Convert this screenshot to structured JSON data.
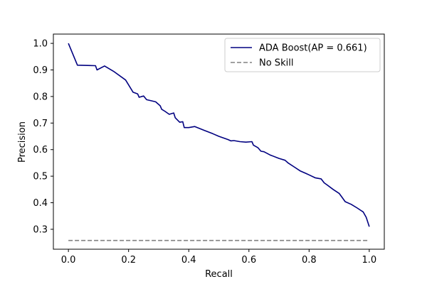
{
  "chart_data": {
    "type": "line",
    "title": "",
    "xlabel": "Recall",
    "ylabel": "Precision",
    "xlim": [
      -0.05,
      1.05
    ],
    "ylim": [
      0.225,
      1.035
    ],
    "xticks": [
      0.0,
      0.2,
      0.4,
      0.6,
      0.8,
      1.0
    ],
    "xtick_labels": [
      "0.0",
      "0.2",
      "0.4",
      "0.6",
      "0.8",
      "1.0"
    ],
    "yticks": [
      0.3,
      0.4,
      0.5,
      0.6,
      0.7,
      0.8,
      0.9,
      1.0
    ],
    "ytick_labels": [
      "0.3",
      "0.4",
      "0.5",
      "0.6",
      "0.7",
      "0.8",
      "0.9",
      "1.0"
    ],
    "grid": false,
    "legend_position": "top-right",
    "series": [
      {
        "name": "ADA Boost(AP = 0.661)",
        "color": "#000080",
        "style": "solid",
        "x": [
          0.0,
          0.03,
          0.09,
          0.095,
          0.12,
          0.15,
          0.19,
          0.215,
          0.23,
          0.235,
          0.25,
          0.26,
          0.29,
          0.305,
          0.31,
          0.32,
          0.335,
          0.35,
          0.355,
          0.37,
          0.38,
          0.385,
          0.4,
          0.42,
          0.45,
          0.48,
          0.5,
          0.53,
          0.54,
          0.55,
          0.57,
          0.59,
          0.61,
          0.615,
          0.63,
          0.64,
          0.65,
          0.67,
          0.7,
          0.72,
          0.73,
          0.75,
          0.77,
          0.79,
          0.8,
          0.82,
          0.84,
          0.85,
          0.86,
          0.88,
          0.9,
          0.91,
          0.92,
          0.94,
          0.96,
          0.98,
          0.99,
          1.0
        ],
        "y": [
          1.0,
          0.918,
          0.916,
          0.9,
          0.915,
          0.895,
          0.862,
          0.816,
          0.81,
          0.797,
          0.802,
          0.788,
          0.78,
          0.765,
          0.752,
          0.745,
          0.733,
          0.738,
          0.72,
          0.703,
          0.705,
          0.683,
          0.683,
          0.687,
          0.673,
          0.66,
          0.65,
          0.638,
          0.633,
          0.634,
          0.63,
          0.628,
          0.63,
          0.617,
          0.607,
          0.594,
          0.592,
          0.58,
          0.567,
          0.56,
          0.55,
          0.535,
          0.52,
          0.51,
          0.505,
          0.494,
          0.49,
          0.475,
          0.467,
          0.45,
          0.435,
          0.42,
          0.404,
          0.394,
          0.38,
          0.365,
          0.345,
          0.31
        ]
      },
      {
        "name": "No Skill",
        "color": "#808080",
        "style": "dashed",
        "x": [
          0.0,
          1.0
        ],
        "y": [
          0.258,
          0.258
        ]
      }
    ]
  }
}
